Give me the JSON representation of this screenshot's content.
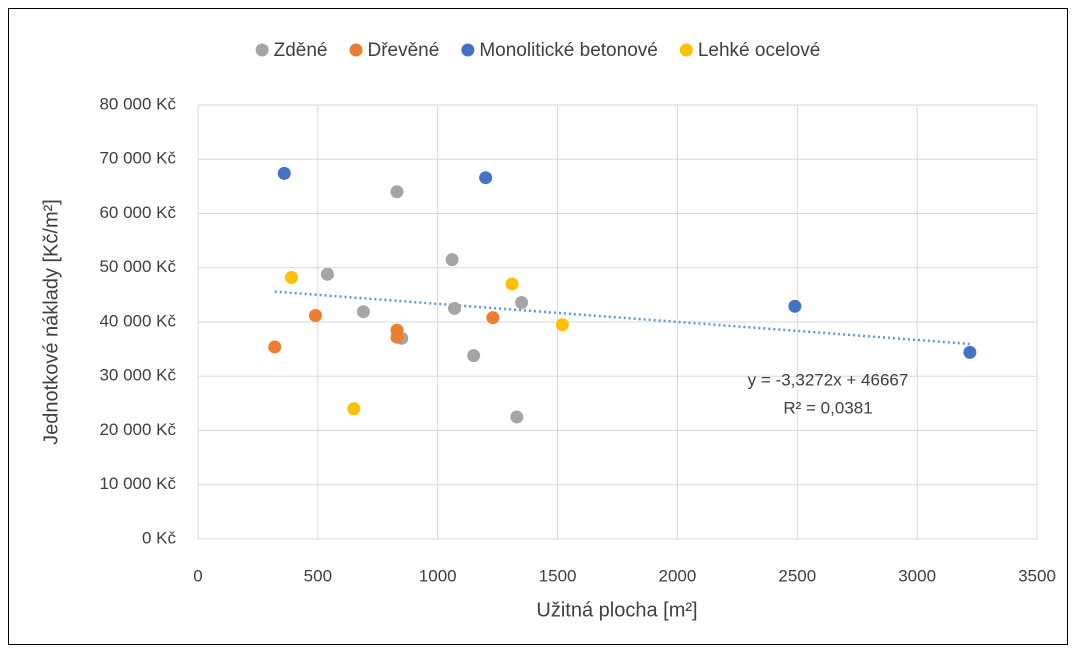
{
  "chart_data": {
    "type": "scatter",
    "xlabel": "Užitná plocha [m²]",
    "ylabel": "Jednotkové náklady [Kč/m²]",
    "xlim": [
      0,
      3500
    ],
    "xticks": [
      0,
      500,
      1000,
      1500,
      2000,
      2500,
      3000,
      3500
    ],
    "ylim": [
      0,
      80000
    ],
    "yticks": [
      {
        "value": 0,
        "label": "0 Kč"
      },
      {
        "value": 10000,
        "label": "10 000 Kč"
      },
      {
        "value": 20000,
        "label": "20 000 Kč"
      },
      {
        "value": 30000,
        "label": "30 000 Kč"
      },
      {
        "value": 40000,
        "label": "40 000 Kč"
      },
      {
        "value": 50000,
        "label": "50 000 Kč"
      },
      {
        "value": 60000,
        "label": "60 000 Kč"
      },
      {
        "value": 70000,
        "label": "70 000 Kč"
      },
      {
        "value": 80000,
        "label": "80 000 Kč"
      }
    ],
    "grid": true,
    "legend": "top",
    "series": [
      {
        "name": "Zděné",
        "color": "#a5a5a5",
        "x": [
          830,
          540,
          1060,
          690,
          1070,
          850,
          1350,
          1150,
          1330
        ],
        "values": [
          64000,
          48800,
          51500,
          41900,
          42500,
          37000,
          43600,
          33800,
          22500
        ]
      },
      {
        "name": "Dřevěné",
        "color": "#ed7d31",
        "x": [
          320,
          490,
          830,
          830,
          1230
        ],
        "values": [
          35400,
          41200,
          38500,
          37200,
          40800
        ]
      },
      {
        "name": "Monolitické betonové",
        "color": "#4472c4",
        "x": [
          360,
          1200,
          2490,
          3220
        ],
        "values": [
          67400,
          66600,
          42900,
          34400
        ]
      },
      {
        "name": "Lehké ocelové",
        "color": "#ffc000",
        "x": [
          390,
          650,
          1310,
          1520
        ],
        "values": [
          48200,
          24000,
          47000,
          39500
        ]
      }
    ],
    "trendline": {
      "slope": -3.3272,
      "intercept": 46667,
      "color": "#5b9bd5",
      "equation": "y = -3,3272x + 46667",
      "r2": "R² = 0,0381"
    }
  }
}
